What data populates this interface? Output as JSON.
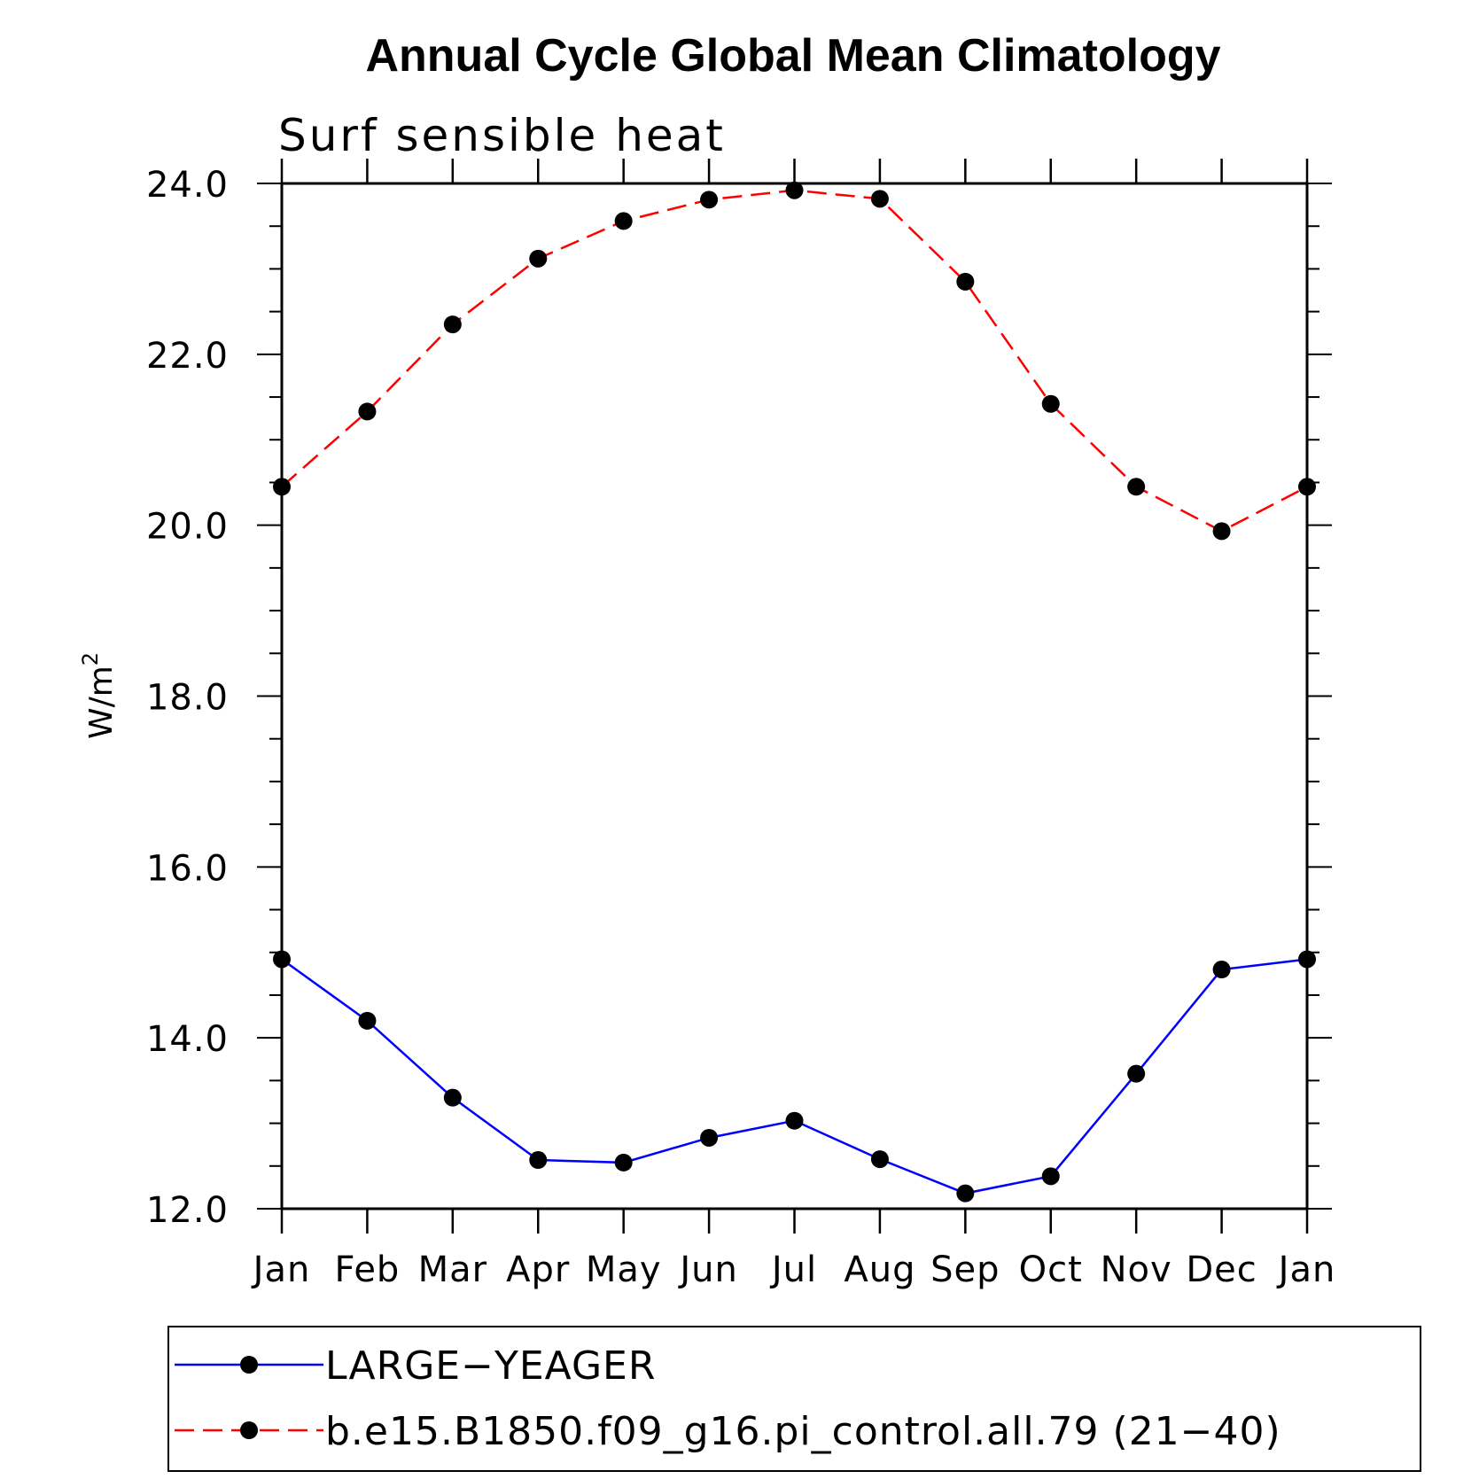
{
  "chart_data": {
    "type": "line",
    "title": "Annual Cycle Global Mean Climatology",
    "subtitle": "Surf sensible heat",
    "ylabel": "W/m",
    "ylabel_sup": "2",
    "xlabel": "",
    "ylim": [
      12,
      24
    ],
    "yticks": [
      "12.0",
      "14.0",
      "16.0",
      "18.0",
      "20.0",
      "22.0",
      "24.0"
    ],
    "categories": [
      "Jan",
      "Feb",
      "Mar",
      "Apr",
      "May",
      "Jun",
      "Jul",
      "Aug",
      "Sep",
      "Oct",
      "Nov",
      "Dec",
      "Jan"
    ],
    "grid": false,
    "legend_position": "bottom",
    "series": [
      {
        "name": "LARGE−YEAGER",
        "color": "#0000ff",
        "dash": "solid",
        "values": [
          14.92,
          14.2,
          13.3,
          12.57,
          12.54,
          12.83,
          13.03,
          12.58,
          12.18,
          12.38,
          13.58,
          14.8,
          14.92
        ]
      },
      {
        "name": "b.e15.B1850.f09_g16.pi_control.all.79 (21−40)",
        "color": "#ff0000",
        "dash": "dashed",
        "values": [
          20.45,
          21.33,
          22.35,
          23.12,
          23.56,
          23.81,
          23.92,
          23.82,
          22.85,
          21.42,
          20.45,
          19.93,
          20.45
        ]
      }
    ]
  }
}
